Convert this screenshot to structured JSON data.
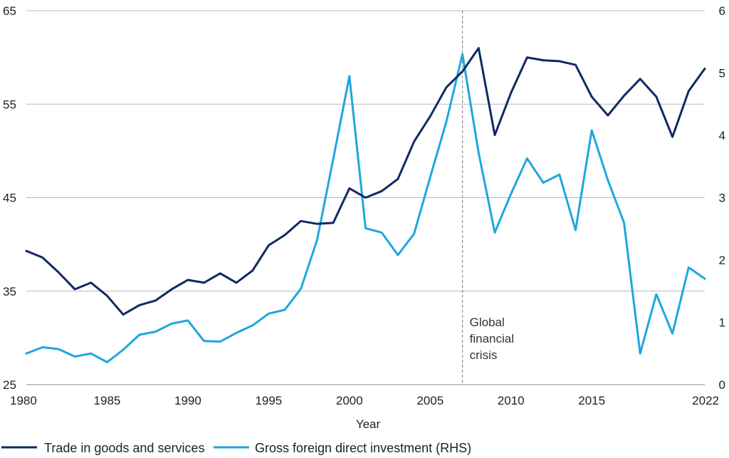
{
  "chart_data": {
    "type": "line",
    "title": "",
    "xlabel": "Year",
    "ylabel": "",
    "x_ticks": [
      "1980",
      "1985",
      "1990",
      "1995",
      "2000",
      "2005",
      "2010",
      "2015",
      "2022"
    ],
    "y_left_ticks": [
      "25",
      "35",
      "45",
      "55",
      "65"
    ],
    "y_right_ticks": [
      "0",
      "1",
      "2",
      "3",
      "4",
      "5",
      "6"
    ],
    "xlim": [
      1980,
      2022
    ],
    "ylim_left": [
      25,
      65
    ],
    "ylim_right": [
      0,
      6
    ],
    "grid": "horizontal",
    "legend_position": "bottom-left",
    "annotation": {
      "lines": [
        "Global",
        "financial",
        "crisis"
      ],
      "x": 2007
    },
    "series": [
      {
        "name": "Trade in goods and services",
        "axis": "left",
        "color": "#0f2a62",
        "x": [
          1980,
          1981,
          1982,
          1983,
          1984,
          1985,
          1986,
          1987,
          1988,
          1989,
          1990,
          1991,
          1992,
          1993,
          1994,
          1995,
          1996,
          1997,
          1998,
          1999,
          2000,
          2001,
          2002,
          2003,
          2004,
          2005,
          2006,
          2007,
          2008,
          2009,
          2010,
          2011,
          2012,
          2013,
          2014,
          2015,
          2016,
          2017,
          2018,
          2019,
          2020,
          2021,
          2022
        ],
        "values": [
          39.3,
          38.6,
          37.0,
          35.2,
          35.9,
          34.5,
          32.5,
          33.5,
          34.0,
          35.2,
          36.2,
          35.9,
          36.9,
          35.9,
          37.2,
          39.9,
          41.0,
          42.5,
          42.2,
          42.3,
          46.0,
          45.0,
          45.7,
          47.0,
          51.0,
          53.7,
          56.8,
          58.5,
          61.0,
          51.7,
          56.2,
          60.0,
          59.7,
          59.6,
          59.2,
          55.8,
          53.8,
          55.9,
          57.7,
          55.8,
          51.5,
          56.4,
          58.8
        ]
      },
      {
        "name": "Gross foreign direct investment (RHS)",
        "axis": "right",
        "color": "#1ea7df",
        "x": [
          1980,
          1981,
          1982,
          1983,
          1984,
          1985,
          1986,
          1987,
          1988,
          1989,
          1990,
          1991,
          1992,
          1993,
          1994,
          1995,
          1996,
          1997,
          1998,
          1999,
          2000,
          2001,
          2002,
          2003,
          2004,
          2005,
          2006,
          2007,
          2008,
          2009,
          2010,
          2011,
          2012,
          2013,
          2014,
          2015,
          2016,
          2017,
          2018,
          2019,
          2020,
          2021,
          2022
        ],
        "values": [
          0.5,
          0.6,
          0.57,
          0.45,
          0.5,
          0.36,
          0.56,
          0.8,
          0.85,
          0.98,
          1.03,
          0.7,
          0.69,
          0.83,
          0.95,
          1.14,
          1.2,
          1.54,
          2.32,
          3.62,
          4.95,
          2.51,
          2.44,
          2.08,
          2.42,
          3.33,
          4.22,
          5.3,
          3.72,
          2.44,
          3.06,
          3.63,
          3.24,
          3.37,
          2.48,
          4.08,
          3.28,
          2.6,
          0.5,
          1.45,
          0.82,
          1.88,
          1.7
        ]
      }
    ]
  }
}
